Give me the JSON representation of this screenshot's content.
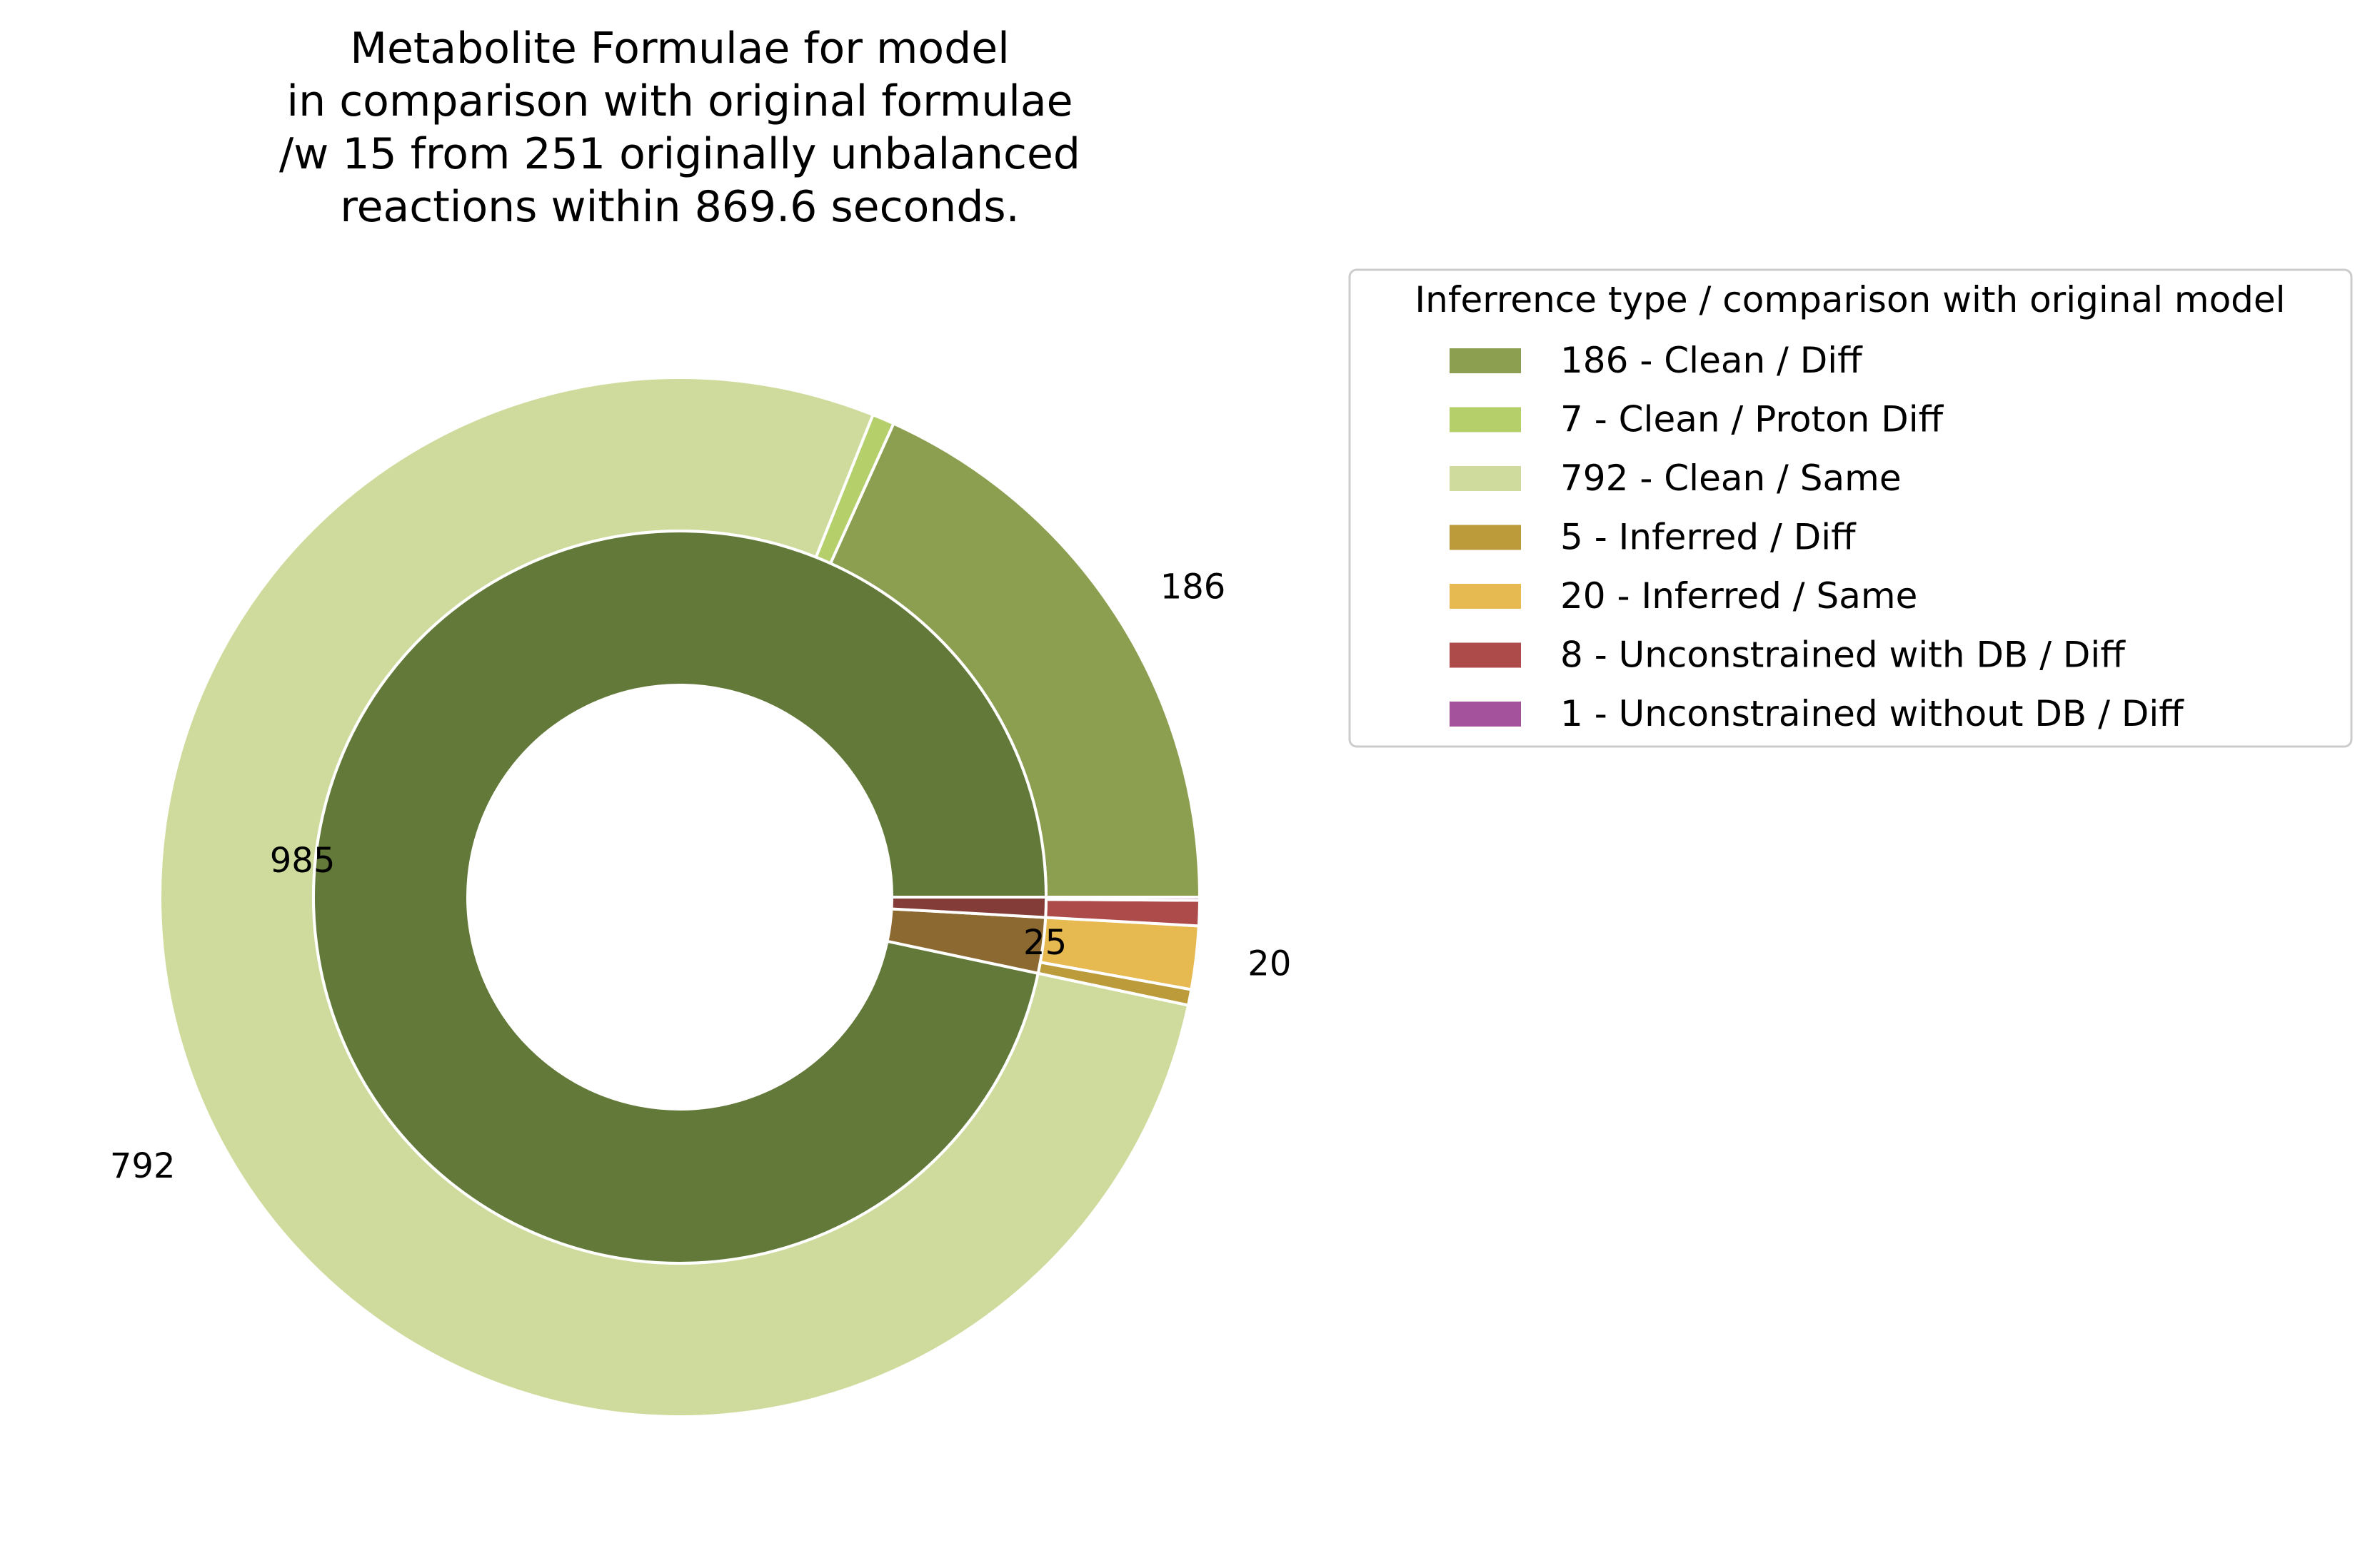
{
  "chart_data": {
    "type": "pie",
    "variant": "nested-donut",
    "title_lines": [
      "Metabolite Formulae for model",
      "in comparison with original formulae",
      "/w 15 from 251 originally unbalanced",
      "reactions within 869.6 seconds."
    ],
    "start_angle_deg": 0,
    "direction": "counterclockwise",
    "legend": {
      "title": "Inferrence type / comparison with original model",
      "placement": "right",
      "entries": [
        {
          "label": "186 - Clean / Diff",
          "color": "#8c9f51"
        },
        {
          "label": "7 - Clean / Proton Diff",
          "color": "#b5cf6b"
        },
        {
          "label": "792 - Clean / Same",
          "color": "#cfdb9c"
        },
        {
          "label": "5 - Inferred / Diff",
          "color": "#bc9c3a"
        },
        {
          "label": "20 - Inferred / Same",
          "color": "#e6b951"
        },
        {
          "label": "8 - Unconstrained with DB / Diff",
          "color": "#ad4a4a"
        },
        {
          "label": "1 - Unconstrained without DB / Diff",
          "color": "#a5529c"
        }
      ]
    },
    "outer_ring": {
      "values": [
        186,
        7,
        792,
        5,
        20,
        8,
        1
      ],
      "colors": [
        "#8c9f51",
        "#b5cf6b",
        "#cfdb9c",
        "#bc9c3a",
        "#e6b951",
        "#ad4a4a",
        "#a5529c"
      ],
      "labels": [
        "186",
        "",
        "792",
        "",
        "20",
        "",
        ""
      ]
    },
    "inner_ring": {
      "values": [
        985,
        25,
        9
      ],
      "colors": [
        "#637939",
        "#8b6930",
        "#843c39"
      ],
      "labels": [
        "985",
        "25",
        ""
      ]
    },
    "edge_color": "#ffffff"
  }
}
